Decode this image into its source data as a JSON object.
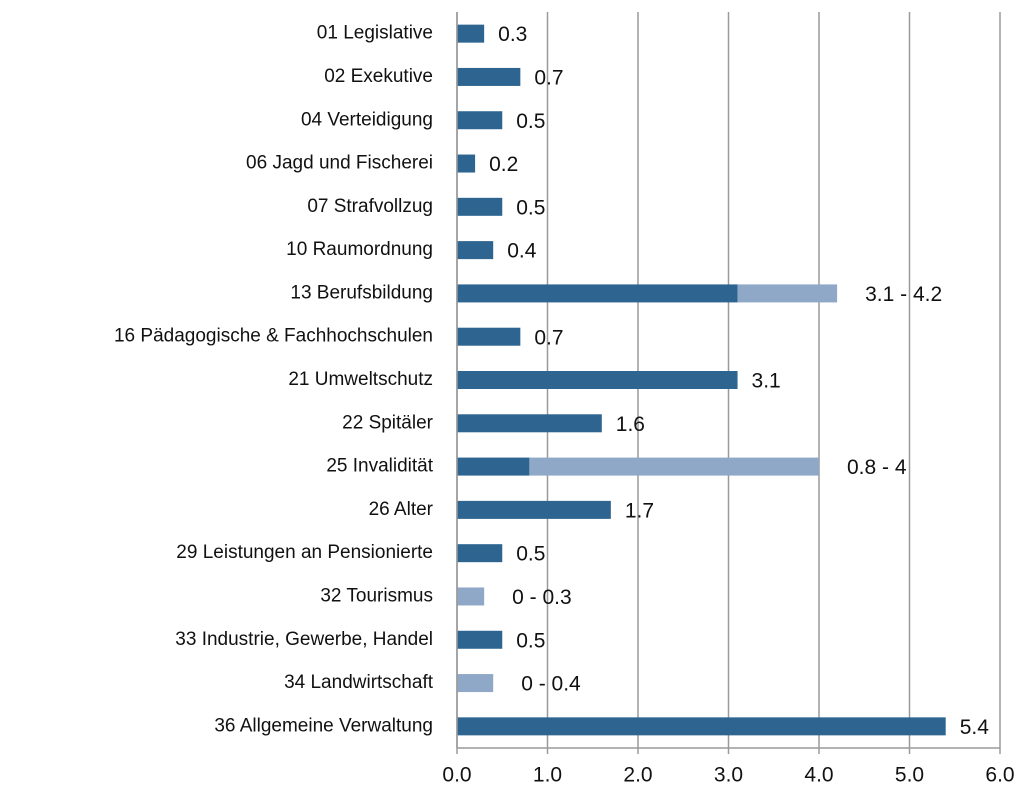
{
  "chart_data": {
    "type": "bar",
    "orientation": "horizontal",
    "categories": [
      "01 Legislative",
      "02 Exekutive",
      "04 Verteidigung",
      "06 Jagd und Fischerei",
      "07 Strafvollzug",
      "10 Raumordnung",
      "13 Berufsbildung",
      "16 Pädagogische & Fachhochschulen",
      "21 Umweltschutz",
      "22 Spitäler",
      "25 Invalidität",
      "26 Alter",
      "29 Leistungen an Pensionierte",
      "32 Tourismus",
      "33 Industrie, Gewerbe, Handel",
      "34 Landwirtschaft",
      "36 Allgemeine Verwaltung"
    ],
    "values": [
      0.3,
      0.7,
      0.5,
      0.2,
      0.5,
      0.4,
      3.1,
      0.7,
      3.1,
      1.6,
      0.8,
      1.7,
      0.5,
      0,
      0.5,
      0,
      5.4
    ],
    "range_ends": [
      null,
      null,
      null,
      null,
      null,
      null,
      4.2,
      null,
      null,
      null,
      4,
      null,
      null,
      0.3,
      null,
      0.4,
      null
    ],
    "value_labels": [
      "0.3",
      "0.7",
      "0.5",
      "0.2",
      "0.5",
      "0.4",
      "3.1 - 4.2",
      "0.7",
      "3.1",
      "1.6",
      "0.8 - 4",
      "1.7",
      "0.5",
      "0 - 0.3",
      "0.5",
      "0 - 0.4",
      "5.4"
    ],
    "color": "#2e6590",
    "range_color": "#8fa8c8",
    "xlim": [
      0,
      6
    ],
    "xticks": [
      {
        "value": 0,
        "label": "0.0"
      },
      {
        "value": 1,
        "label": "1.0"
      },
      {
        "value": 2,
        "label": "2.0"
      },
      {
        "value": 3,
        "label": "3.0"
      },
      {
        "value": 4,
        "label": "4.0"
      },
      {
        "value": 5,
        "label": "5.0"
      },
      {
        "value": 6,
        "label": "6.0"
      }
    ],
    "grid": true
  }
}
